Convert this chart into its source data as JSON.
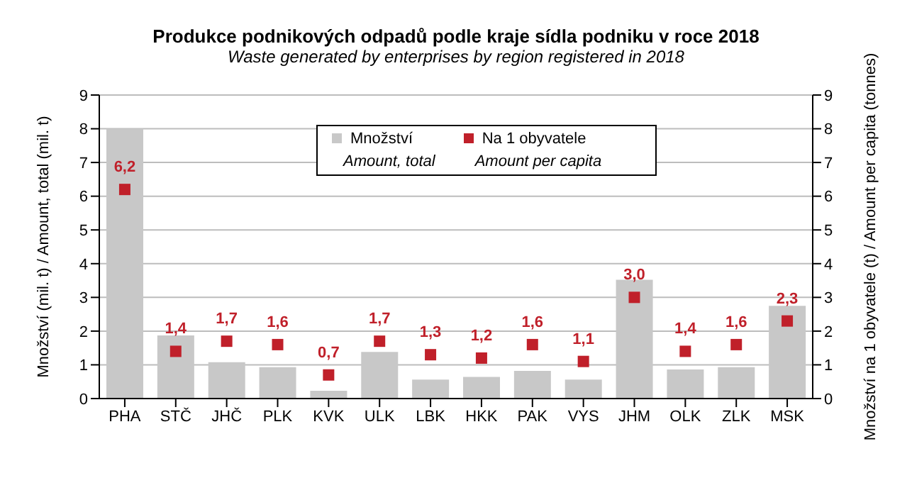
{
  "chart_data": {
    "type": "bar",
    "title": "Produkce podnikových odpadů podle kraje sídla podniku v roce 2018",
    "subtitle": "Waste generated by enterprises by region registered in 2018",
    "categories": [
      "PHA",
      "STČ",
      "JHČ",
      "PLK",
      "KVK",
      "ULK",
      "LBK",
      "HKK",
      "PAK",
      "VYS",
      "JHM",
      "OLK",
      "ZLK",
      "MSK"
    ],
    "series": [
      {
        "name": "Množství\nAmount, total",
        "color": "#c8c8c8",
        "values": [
          8.0,
          1.87,
          1.08,
          0.93,
          0.23,
          1.38,
          0.56,
          0.64,
          0.82,
          0.56,
          3.52,
          0.86,
          0.93,
          2.75
        ]
      },
      {
        "name": "Na 1 obyvatele\nAmount per capita",
        "type": "scatter",
        "axis": "y2",
        "marker": "square",
        "color": "#c0202a",
        "values": [
          6.2,
          1.4,
          1.7,
          1.6,
          0.7,
          1.7,
          1.3,
          1.2,
          1.6,
          1.1,
          3.0,
          1.4,
          1.6,
          2.3
        ],
        "value_labels": [
          "6,2",
          "1,4",
          "1,7",
          "1,6",
          "0,7",
          "1,7",
          "1,3",
          "1,2",
          "1,6",
          "1,1",
          "3,0",
          "1,4",
          "1,6",
          "2,3"
        ]
      }
    ],
    "ylabel": "Množství (mil. t) / Amount, total (mil. t)",
    "y2label": "Množství na 1 obyvatele (t) / Amount per capita (tonnes)",
    "ylim": [
      0,
      9
    ],
    "yticks": [
      0,
      1,
      2,
      3,
      4,
      5,
      6,
      7,
      8,
      9
    ],
    "y2lim": [
      0,
      9
    ],
    "y2ticks": [
      0,
      1,
      2,
      3,
      4,
      5,
      6,
      7,
      8,
      9
    ],
    "grid": "y",
    "legend": "top"
  }
}
